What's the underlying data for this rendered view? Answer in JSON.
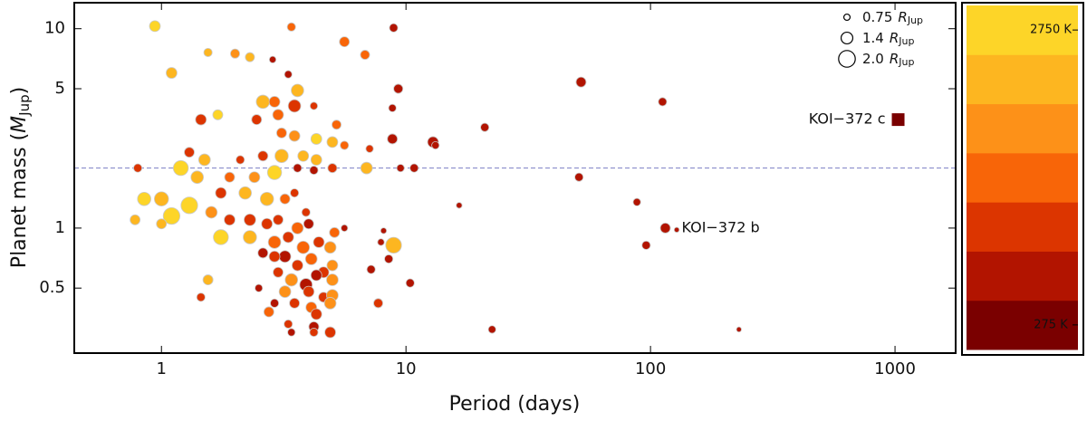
{
  "chart_data": {
    "type": "scatter",
    "xlabel": "Period (days)",
    "ylabel": "Planet mass (",
    "ylabel_symbol": "M",
    "ylabel_sub": "Jup",
    "ylabel_end": ")",
    "xscale": "log",
    "yscale": "log",
    "xlim": [
      0.44,
      1770
    ],
    "ylim": [
      0.236,
      13.5
    ],
    "xticks": [
      1,
      10,
      100,
      1000
    ],
    "yticks": [
      0.5,
      1,
      5,
      10
    ],
    "reference_line": 2,
    "reference_color": "#7b7fc4",
    "x": [
      0.94,
      1.55,
      2.0,
      2.3,
      2.85,
      3.4,
      3.3,
      5.6,
      6.8,
      8.9,
      1.1,
      2.6,
      3.6,
      2.9,
      3.5,
      4.2,
      1.7,
      1.45,
      2.45,
      3.0,
      5.2,
      9.3,
      8.8,
      3.1,
      3.5,
      4.3,
      5.0,
      5.6,
      7.1,
      8.8,
      12.9,
      13.2,
      21,
      52,
      112,
      1.3,
      1.5,
      2.1,
      2.6,
      3.1,
      3.8,
      4.3,
      6.9,
      0.8,
      1.2,
      1.4,
      1.9,
      2.4,
      2.9,
      3.6,
      4.2,
      5.0,
      9.5,
      10.8,
      51,
      88,
      16.5,
      1.0,
      0.85,
      1.3,
      1.75,
      2.2,
      2.7,
      3.2,
      1.1,
      0.78,
      1.0,
      1.6,
      1.9,
      2.3,
      2.7,
      3.0,
      3.6,
      4.0,
      5.1,
      5.6,
      1.75,
      2.3,
      2.9,
      3.3,
      3.8,
      4.4,
      4.9,
      8.9,
      7.9,
      2.6,
      3.2,
      3.6,
      4.1,
      4.6,
      5.0,
      7.2,
      8.5,
      3.0,
      3.4,
      3.9,
      4.3,
      5.0,
      1.55,
      2.5,
      3.2,
      4.0,
      4.6,
      5.0,
      10.4,
      1.45,
      2.9,
      3.5,
      4.1,
      4.9,
      7.7,
      2.75,
      4.3,
      3.3,
      4.2,
      3.4,
      4.9,
      4.2,
      22.5,
      230,
      96,
      2.9,
      8.1,
      3.9,
      3.5,
      128
    ],
    "y": [
      10.3,
      7.6,
      7.5,
      7.2,
      7.0,
      10.2,
      5.9,
      8.6,
      7.4,
      10.1,
      6.0,
      4.3,
      4.9,
      4.3,
      4.1,
      4.1,
      3.7,
      3.5,
      3.5,
      3.7,
      3.3,
      5.0,
      4.0,
      3.0,
      2.9,
      2.8,
      2.7,
      2.6,
      2.5,
      2.8,
      2.7,
      2.6,
      3.2,
      5.4,
      4.3,
      2.4,
      2.2,
      2.2,
      2.3,
      2.3,
      2.3,
      2.2,
      2.0,
      2.0,
      2.0,
      1.8,
      1.8,
      1.8,
      1.9,
      2.0,
      1.95,
      2.0,
      2.0,
      2.0,
      1.8,
      1.35,
      1.3,
      1.4,
      1.4,
      1.3,
      1.5,
      1.5,
      1.4,
      1.4,
      1.15,
      1.1,
      1.05,
      1.2,
      1.1,
      1.1,
      1.05,
      1.1,
      1.0,
      1.05,
      0.95,
      1.0,
      0.9,
      0.9,
      0.85,
      0.9,
      0.8,
      0.85,
      0.8,
      0.82,
      0.85,
      0.75,
      0.72,
      0.65,
      0.7,
      0.6,
      0.65,
      0.62,
      0.7,
      0.6,
      0.55,
      0.52,
      0.58,
      0.55,
      0.55,
      0.5,
      0.48,
      0.48,
      0.45,
      0.46,
      0.53,
      0.45,
      0.42,
      0.42,
      0.4,
      0.42,
      0.42,
      0.38,
      0.37,
      0.33,
      0.32,
      0.3,
      0.3,
      0.3,
      0.31,
      0.31,
      0.82,
      0.72,
      0.97,
      1.2,
      1.5,
      0.98
    ],
    "sizes": [
      1.3,
      1.0,
      1.1,
      1.1,
      0.8,
      1.0,
      0.9,
      1.2,
      1.1,
      1.0,
      1.3,
      1.6,
      1.5,
      1.3,
      1.5,
      0.9,
      1.2,
      1.3,
      1.2,
      1.3,
      1.1,
      1.1,
      0.9,
      1.2,
      1.3,
      1.3,
      1.3,
      1.0,
      0.9,
      1.2,
      1.3,
      0.9,
      1.0,
      1.2,
      1.0,
      1.2,
      1.4,
      1.0,
      1.2,
      1.6,
      1.3,
      1.3,
      1.4,
      1.0,
      1.8,
      1.5,
      1.2,
      1.3,
      1.7,
      1.0,
      1.0,
      1.1,
      0.9,
      1.0,
      1.0,
      0.9,
      0.7,
      1.7,
      1.6,
      2.0,
      1.3,
      1.5,
      1.6,
      1.2,
      2.0,
      1.2,
      1.2,
      1.4,
      1.3,
      1.4,
      1.3,
      1.2,
      1.4,
      1.2,
      1.2,
      0.8,
      1.8,
      1.6,
      1.5,
      1.3,
      1.5,
      1.3,
      1.4,
      1.9,
      0.8,
      1.2,
      1.4,
      1.3,
      1.4,
      1.3,
      1.3,
      1.0,
      1.0,
      1.2,
      1.5,
      1.5,
      1.3,
      1.4,
      1.2,
      0.9,
      1.4,
      1.3,
      1.2,
      1.4,
      1.0,
      1.0,
      1.0,
      1.2,
      1.3,
      1.4,
      1.1,
      1.2,
      1.3,
      1.0,
      1.2,
      0.9,
      1.3,
      1.0,
      0.9,
      0.6,
      1.0,
      1.3,
      0.7,
      1.0,
      1.0,
      0.6
    ],
    "temperatures": [
      2600,
      2500,
      1800,
      2500,
      600,
      1700,
      800,
      1600,
      1700,
      500,
      2500,
      2500,
      2500,
      1500,
      1200,
      900,
      2600,
      1100,
      1300,
      1600,
      1600,
      500,
      600,
      1600,
      2000,
      2600,
      2400,
      1400,
      900,
      500,
      600,
      500,
      600,
      500,
      500,
      1300,
      2400,
      1200,
      900,
      2400,
      2300,
      2500,
      2400,
      1300,
      2700,
      2500,
      1600,
      2000,
      2600,
      700,
      800,
      1200,
      500,
      600,
      500,
      500,
      500,
      2500,
      2600,
      2700,
      1200,
      2300,
      2400,
      1600,
      2700,
      2500,
      2500,
      2100,
      1300,
      1000,
      1300,
      900,
      1500,
      700,
      1700,
      500,
      2600,
      2300,
      1400,
      1100,
      1500,
      1000,
      2000,
      2500,
      500,
      800,
      600,
      1200,
      1600,
      1100,
      1900,
      700,
      500,
      1000,
      1800,
      800,
      500,
      2100,
      2400,
      600,
      2000,
      900,
      1200,
      1900,
      600,
      1100,
      800,
      1200,
      1400,
      1900,
      1300,
      1500,
      1100,
      900,
      800,
      600,
      1200,
      900,
      600,
      500,
      500,
      1100,
      600,
      900,
      900,
      500
    ],
    "highlighted": [
      {
        "name": "KOI−372 b",
        "x": 115,
        "y": 1.0,
        "size": 1.2,
        "temperature": 500,
        "marker": "circle",
        "label_side": "right"
      },
      {
        "name": "KOI−372 c",
        "x": 1030,
        "y": 3.5,
        "temperature": 275,
        "marker": "square",
        "label_side": "left"
      }
    ],
    "size_legend": [
      {
        "value": 0.75,
        "label": "0.75"
      },
      {
        "value": 1.4,
        "label": "1.4"
      },
      {
        "value": 2.0,
        "label": "2.0"
      }
    ],
    "size_unit": "R",
    "size_unit_sub": "Jup",
    "colorbar": {
      "colors": [
        "#7a0000",
        "#b21400",
        "#dc3500",
        "#f86508",
        "#fd9118",
        "#fdb620",
        "#fdd528"
      ],
      "lim": [
        68.75,
        2956.25
      ],
      "ticks": [
        {
          "value": 2750,
          "label": "2750 K"
        },
        {
          "value": 275,
          "label": "275 K"
        }
      ]
    }
  }
}
